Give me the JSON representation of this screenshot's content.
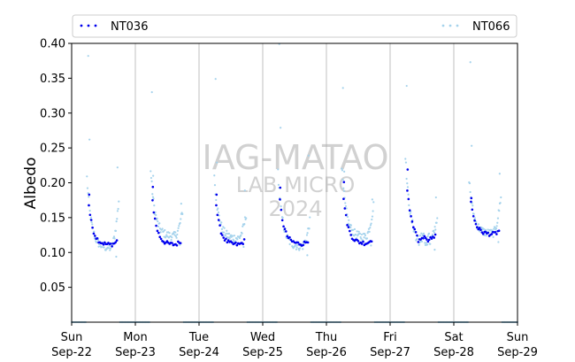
{
  "chart_data": {
    "type": "scatter",
    "ylabel": "Albedo",
    "ylim": [
      0.0,
      0.4
    ],
    "yticks": [
      {
        "value": 0.05,
        "label": "0.05"
      },
      {
        "value": 0.1,
        "label": "0.10"
      },
      {
        "value": 0.15,
        "label": "0.15"
      },
      {
        "value": 0.2,
        "label": "0.20"
      },
      {
        "value": 0.25,
        "label": "0.25"
      },
      {
        "value": 0.3,
        "label": "0.30"
      },
      {
        "value": 0.35,
        "label": "0.35"
      },
      {
        "value": 0.4,
        "label": "0.40"
      }
    ],
    "xlim": [
      "2024-09-22",
      "2024-09-29"
    ],
    "xticks": [
      {
        "day": "Sun",
        "date": "Sep-22"
      },
      {
        "day": "Mon",
        "date": "Sep-23"
      },
      {
        "day": "Tue",
        "date": "Sep-24"
      },
      {
        "day": "Wed",
        "date": "Sep-25"
      },
      {
        "day": "Thu",
        "date": "Sep-26"
      },
      {
        "day": "Fri",
        "date": "Sep-27"
      },
      {
        "day": "Sat",
        "date": "Sep-28"
      },
      {
        "day": "Sun",
        "date": "Sep-29"
      }
    ],
    "vertical_gridlines_at_days": true,
    "legend_position": "top",
    "watermark": [
      "IAG-MATAO",
      "LAB MICRO",
      "2024"
    ],
    "series": [
      {
        "name": "NT036",
        "color": "#0000ee",
        "daily_minimum": [
          0.111,
          0.111,
          0.111,
          0.112,
          0.113,
          0.118,
          0.126
        ],
        "daily_peak_morning": [
          0.183,
          0.194,
          0.183,
          0.193,
          0.201,
          0.219,
          0.178
        ]
      },
      {
        "name": "NT066",
        "color": "#a6d3ec",
        "daily_minimum": [
          0.094,
          0.111,
          0.108,
          0.096,
          0.11,
          0.104,
          0.115
        ],
        "daily_outliers": [
          0.382,
          0.33,
          0.349,
          0.399,
          0.336,
          0.339,
          0.373
        ],
        "zero_baseline": 0.0
      }
    ]
  }
}
